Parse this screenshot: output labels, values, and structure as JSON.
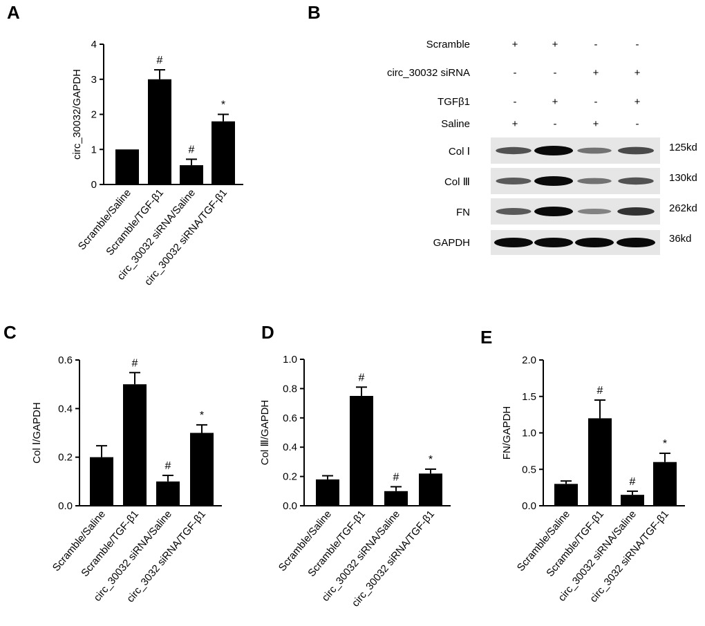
{
  "panels": {
    "A": {
      "letter": "A",
      "chart_data": {
        "type": "bar",
        "categories": [
          "Scramble/Saline",
          "Scramble/TGF-β1",
          "circ_30032 siRNA/Saline",
          "circ_30032 siRNA/TGF-β1"
        ],
        "values": [
          1.0,
          3.0,
          0.55,
          1.8
        ],
        "errors": [
          0.0,
          0.27,
          0.17,
          0.2
        ],
        "marks": [
          "",
          "#",
          "#",
          "*"
        ],
        "ylabel": "circ_30032/GAPDH",
        "ylim": [
          0,
          4
        ],
        "yticks": [
          "0",
          "1",
          "2",
          "3",
          "4"
        ],
        "grid": false
      }
    },
    "B": {
      "letter": "B",
      "conditions": [
        {
          "label": "Scramble",
          "signs": [
            "+",
            "+",
            "-",
            "-"
          ]
        },
        {
          "label": "circ_30032 siRNA",
          "signs": [
            "-",
            "-",
            "+",
            "+"
          ]
        },
        {
          "label": "TGFβ1",
          "signs": [
            "-",
            "+",
            "-",
            "+"
          ]
        },
        {
          "label": "Saline",
          "signs": [
            "+",
            "-",
            "+",
            "-"
          ]
        }
      ],
      "blots": [
        {
          "label": "Col Ⅰ",
          "size": "125kd",
          "intensity": [
            0.55,
            1.0,
            0.35,
            0.6
          ]
        },
        {
          "label": "Col Ⅲ",
          "size": "130kd",
          "intensity": [
            0.5,
            1.0,
            0.35,
            0.55
          ]
        },
        {
          "label": "FN",
          "size": "262kd",
          "intensity": [
            0.5,
            1.0,
            0.25,
            0.75
          ]
        },
        {
          "label": "GAPDH",
          "size": "36kd",
          "intensity": [
            1.0,
            1.0,
            1.0,
            1.0
          ]
        }
      ]
    },
    "C": {
      "letter": "C",
      "chart_data": {
        "type": "bar",
        "categories": [
          "Scramble/Saline",
          "Scramble/TGF-β1",
          "circ_30032 siRNA/Saline",
          "circ_3032 siRNA/TGF-β1"
        ],
        "values": [
          0.2,
          0.5,
          0.1,
          0.3
        ],
        "errors": [
          0.047,
          0.048,
          0.025,
          0.033
        ],
        "marks": [
          "",
          "#",
          "#",
          "*"
        ],
        "ylabel": "Col Ⅰ/GAPDH",
        "ylim": [
          0,
          0.6
        ],
        "yticks": [
          "0.0",
          "0.2",
          "0.4",
          "0.6"
        ],
        "grid": false
      }
    },
    "D": {
      "letter": "D",
      "chart_data": {
        "type": "bar",
        "categories": [
          "Scramble/Saline",
          "Scramble/TGF-β1",
          "circ_30032 siRNA/Saline",
          "circ_30032 siRNA/TGF-β1"
        ],
        "values": [
          0.18,
          0.75,
          0.1,
          0.22
        ],
        "errors": [
          0.025,
          0.06,
          0.03,
          0.03
        ],
        "marks": [
          "",
          "#",
          "#",
          "*"
        ],
        "ylabel": "Col Ⅲ/GAPDH",
        "ylim": [
          0,
          1.0
        ],
        "yticks": [
          "0.0",
          "0.2",
          "0.4",
          "0.6",
          "0.8",
          "1.0"
        ],
        "grid": false
      }
    },
    "E": {
      "letter": "E",
      "chart_data": {
        "type": "bar",
        "categories": [
          "Scramble/Saline",
          "Scramble/TGF-β1",
          "circ_30032 siRNA/Saline",
          "circ_3032 siRNA/TGF-β1"
        ],
        "values": [
          0.3,
          1.2,
          0.15,
          0.6
        ],
        "errors": [
          0.04,
          0.25,
          0.05,
          0.12
        ],
        "marks": [
          "",
          "#",
          "#",
          "*"
        ],
        "ylabel": "FN/GAPDH",
        "ylim": [
          0,
          2.0
        ],
        "yticks": [
          "0.0",
          "0.5",
          "1.0",
          "1.5",
          "2.0"
        ],
        "grid": false
      }
    }
  }
}
